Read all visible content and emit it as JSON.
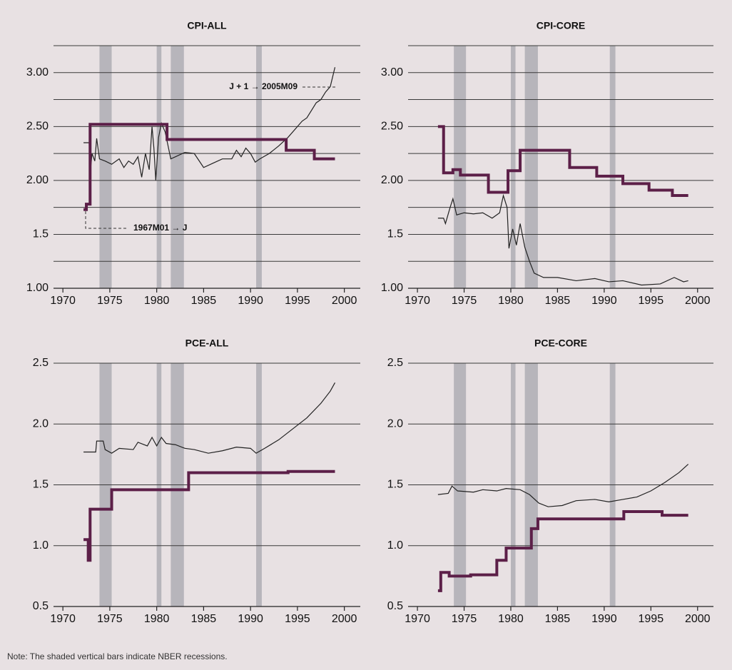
{
  "chart_data": [
    {
      "type": "line",
      "title": "CPI-ALL",
      "xlim": [
        1969,
        2001.7
      ],
      "ylim": [
        1.0,
        3.25
      ],
      "xticks": [
        1970,
        1975,
        1980,
        1985,
        1990,
        1995,
        2000
      ],
      "yticks": [
        {
          "value": 1,
          "label": "1.00"
        },
        1.5,
        {
          "value": 2,
          "label": "2.00"
        },
        {
          "value": 2.5,
          "label": "2.50"
        },
        {
          "value": 3,
          "label": "3.00"
        }
      ],
      "minor_yticks": [
        1.25,
        1.75,
        2.25,
        2.75,
        3.25
      ],
      "grid": true,
      "recessions": [
        [
          1973.9,
          1975.2
        ],
        [
          1980.0,
          1980.5
        ],
        [
          1981.5,
          1982.9
        ],
        [
          1990.6,
          1991.2
        ]
      ],
      "recession_color": "#b7b5bb",
      "annotations": [
        "J + 1 → 2005M09",
        "1967M01 → J"
      ],
      "series": [
        {
          "color": "#222222",
          "width": 1.2,
          "drawstyle": "default",
          "x": [
            1972.2,
            1972.8,
            1972.9,
            1973.1,
            1973.4,
            1973.6,
            1973.9,
            1974.5,
            1975.2,
            1976,
            1976.5,
            1977,
            1977.5,
            1978,
            1978.4,
            1978.8,
            1979.2,
            1979.5,
            1979.7,
            1979.9,
            1980.2,
            1980.5,
            1980.9,
            1981.5,
            1982,
            1983,
            1984,
            1985,
            1986,
            1987,
            1988,
            1988.5,
            1989,
            1989.5,
            1990,
            1990.5,
            1991,
            1992,
            1993,
            1994,
            1995,
            1995.5,
            1996,
            1996.5,
            1997,
            1997.5,
            1998,
            1998.5,
            1999
          ],
          "values": [
            2.35,
            2.35,
            2.05,
            2.25,
            2.18,
            2.39,
            2.2,
            2.18,
            2.15,
            2.2,
            2.12,
            2.18,
            2.15,
            2.22,
            2.03,
            2.25,
            2.1,
            2.5,
            2.3,
            2.0,
            2.4,
            2.53,
            2.45,
            2.2,
            2.22,
            2.26,
            2.25,
            2.12,
            2.16,
            2.2,
            2.2,
            2.28,
            2.22,
            2.3,
            2.25,
            2.17,
            2.2,
            2.25,
            2.32,
            2.4,
            2.5,
            2.55,
            2.58,
            2.65,
            2.72,
            2.75,
            2.82,
            2.87,
            3.05
          ]
        },
        {
          "color": "#5c1f48",
          "width": 4,
          "drawstyle": "steps-post",
          "x": [
            1972.2,
            1972.5,
            1972.9,
            1981.1,
            1993.8,
            1996.8,
            1999
          ],
          "values": [
            1.73,
            1.78,
            2.52,
            2.38,
            2.28,
            2.2,
            2.2
          ]
        }
      ]
    },
    {
      "type": "line",
      "title": "CPI-CORE",
      "xlim": [
        1969,
        2001.7
      ],
      "ylim": [
        1.0,
        3.25
      ],
      "xticks": [
        1970,
        1975,
        1980,
        1985,
        1990,
        1995,
        2000
      ],
      "yticks": [
        {
          "value": 1,
          "label": "1.00"
        },
        1.5,
        {
          "value": 2,
          "label": "2.00"
        },
        {
          "value": 2.5,
          "label": "2.50"
        },
        {
          "value": 3,
          "label": "3.00"
        }
      ],
      "minor_yticks": [
        1.25,
        1.75,
        2.25,
        2.75,
        3.25
      ],
      "grid": true,
      "recessions": [
        [
          1973.9,
          1975.2
        ],
        [
          1980.0,
          1980.5
        ],
        [
          1981.5,
          1982.9
        ],
        [
          1990.6,
          1991.2
        ]
      ],
      "recession_color": "#b7b5bb",
      "series": [
        {
          "color": "#222222",
          "width": 1.2,
          "drawstyle": "default",
          "x": [
            1972.2,
            1972.8,
            1973.0,
            1973.5,
            1973.8,
            1974.2,
            1975,
            1976,
            1977,
            1978,
            1978.8,
            1979.2,
            1979.6,
            1979.8,
            1980.2,
            1980.6,
            1981,
            1981.5,
            1982,
            1982.5,
            1983.5,
            1985,
            1987,
            1989,
            1990.5,
            1992,
            1994,
            1996,
            1997.5,
            1998.5,
            1999
          ],
          "values": [
            1.65,
            1.65,
            1.6,
            1.75,
            1.83,
            1.68,
            1.7,
            1.69,
            1.7,
            1.65,
            1.7,
            1.86,
            1.75,
            1.37,
            1.55,
            1.4,
            1.6,
            1.38,
            1.25,
            1.14,
            1.1,
            1.1,
            1.07,
            1.09,
            1.06,
            1.07,
            1.03,
            1.04,
            1.1,
            1.06,
            1.07
          ]
        },
        {
          "color": "#5c1f48",
          "width": 4,
          "drawstyle": "steps-post",
          "x": [
            1972.2,
            1972.8,
            1973.8,
            1974.6,
            1977.6,
            1979.7,
            1981.0,
            1986.3,
            1989.2,
            1992.0,
            1994.8,
            1997.3,
            1999
          ],
          "values": [
            2.5,
            2.07,
            2.1,
            2.05,
            1.89,
            2.09,
            2.28,
            2.12,
            2.04,
            1.97,
            1.91,
            1.86,
            1.86
          ]
        }
      ]
    },
    {
      "type": "line",
      "title": "PCE-ALL",
      "xlim": [
        1969,
        2001.7
      ],
      "ylim": [
        0.5,
        2.5
      ],
      "xticks": [
        1970,
        1975,
        1980,
        1985,
        1990,
        1995,
        2000
      ],
      "yticks": [
        0.5,
        {
          "value": 1,
          "label": "1.0"
        },
        1.5,
        {
          "value": 2,
          "label": "2.0"
        },
        2.5
      ],
      "grid": true,
      "recessions": [
        [
          1973.9,
          1975.2
        ],
        [
          1980.0,
          1980.5
        ],
        [
          1981.5,
          1982.9
        ],
        [
          1990.6,
          1991.2
        ]
      ],
      "recession_color": "#b7b5bb",
      "series": [
        {
          "color": "#222222",
          "width": 1.2,
          "drawstyle": "default",
          "x": [
            1972.2,
            1973.5,
            1973.6,
            1974.3,
            1974.5,
            1975.2,
            1976,
            1977.5,
            1978,
            1979,
            1979.5,
            1980,
            1980.5,
            1981,
            1982,
            1983,
            1984,
            1985.5,
            1987,
            1988.5,
            1990,
            1990.6,
            1991.5,
            1993,
            1994.5,
            1996,
            1997.5,
            1998.5,
            1999
          ],
          "values": [
            1.77,
            1.77,
            1.86,
            1.86,
            1.79,
            1.76,
            1.8,
            1.79,
            1.85,
            1.82,
            1.89,
            1.82,
            1.89,
            1.84,
            1.83,
            1.8,
            1.79,
            1.76,
            1.78,
            1.81,
            1.8,
            1.76,
            1.8,
            1.87,
            1.96,
            2.05,
            2.17,
            2.27,
            2.34
          ]
        },
        {
          "color": "#5c1f48",
          "width": 4,
          "drawstyle": "steps-post",
          "x": [
            1972.2,
            1972.7,
            1972.9,
            1975.2,
            1983.4,
            1994,
            1999
          ],
          "values": [
            1.05,
            0.88,
            1.3,
            1.46,
            1.6,
            1.61,
            1.61
          ]
        }
      ]
    },
    {
      "type": "line",
      "title": "PCE-CORE",
      "xlim": [
        1969,
        2001.7
      ],
      "ylim": [
        0.5,
        2.5
      ],
      "xticks": [
        1970,
        1975,
        1980,
        1985,
        1990,
        1995,
        2000
      ],
      "yticks": [
        0.5,
        {
          "value": 1,
          "label": "1.0"
        },
        1.5,
        {
          "value": 2,
          "label": "2.0"
        },
        2.5
      ],
      "grid": true,
      "recessions": [
        [
          1973.9,
          1975.2
        ],
        [
          1980.0,
          1980.5
        ],
        [
          1981.5,
          1982.9
        ],
        [
          1990.6,
          1991.2
        ]
      ],
      "recession_color": "#b7b5bb",
      "series": [
        {
          "color": "#222222",
          "width": 1.2,
          "drawstyle": "default",
          "x": [
            1972.2,
            1973.3,
            1973.7,
            1974.3,
            1976,
            1977,
            1978.5,
            1979.5,
            1981,
            1982,
            1983,
            1984,
            1985.5,
            1987,
            1989,
            1990.5,
            1992,
            1993.5,
            1995,
            1996.5,
            1998,
            1999
          ],
          "values": [
            1.42,
            1.43,
            1.49,
            1.45,
            1.44,
            1.46,
            1.45,
            1.47,
            1.46,
            1.42,
            1.35,
            1.32,
            1.33,
            1.37,
            1.38,
            1.36,
            1.38,
            1.4,
            1.45,
            1.52,
            1.6,
            1.67
          ]
        },
        {
          "color": "#5c1f48",
          "width": 4,
          "drawstyle": "steps-post",
          "x": [
            1972.2,
            1972.5,
            1973.4,
            1975.7,
            1978.5,
            1979.5,
            1982.2,
            1982.9,
            1992.1,
            1996.2,
            1999
          ],
          "values": [
            0.63,
            0.78,
            0.75,
            0.76,
            0.88,
            0.98,
            1.14,
            1.22,
            1.28,
            1.25,
            1.25
          ]
        }
      ]
    }
  ],
  "note": "Note: The shaded vertical bars indicate NBER recessions."
}
